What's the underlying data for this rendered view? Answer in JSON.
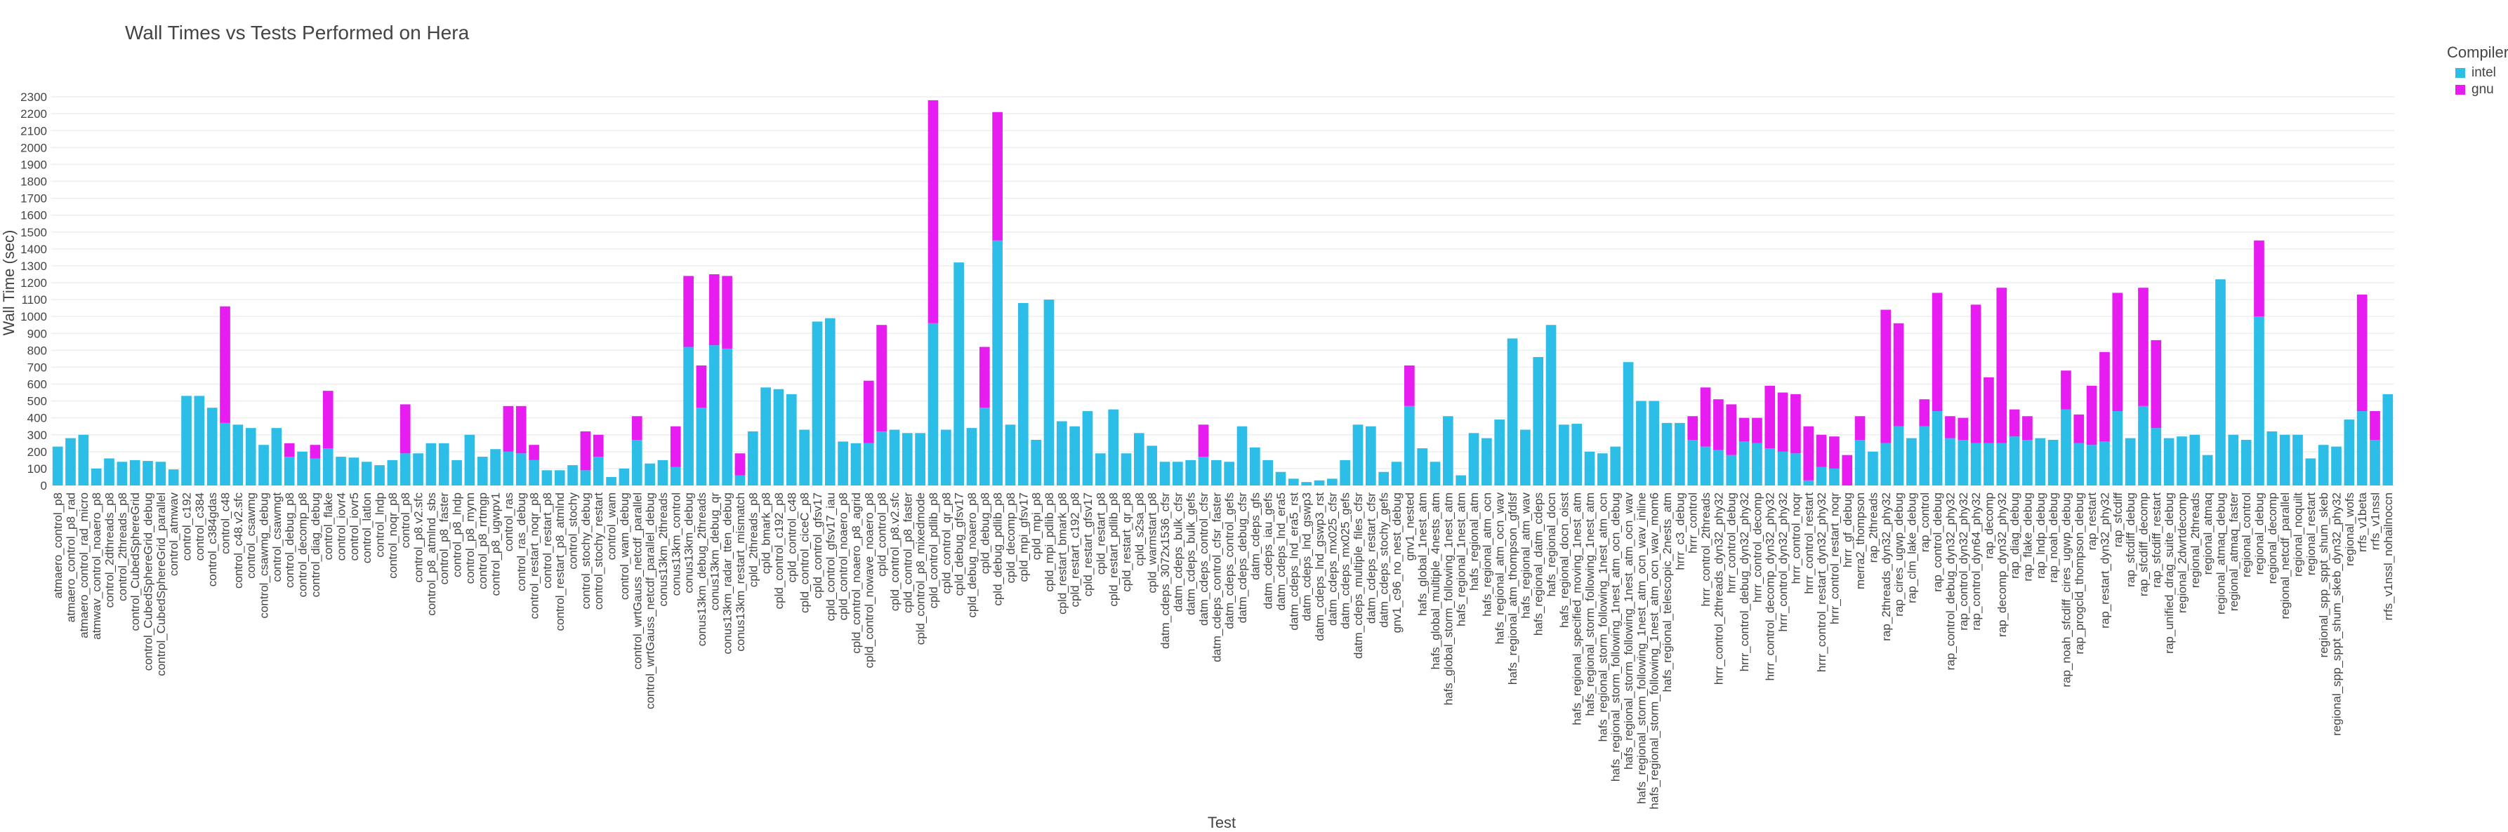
{
  "chart_data": {
    "type": "bar",
    "stacked": true,
    "title": "Wall Times vs Tests Performed on Hera",
    "x_label": "Test",
    "y_label": "Wall Time (sec)",
    "legend_title": "Compiler",
    "legend": "right",
    "grid": true,
    "ylim": [
      0,
      2400
    ],
    "yticks": [
      0,
      100,
      200,
      300,
      400,
      500,
      600,
      700,
      800,
      900,
      1000,
      1100,
      1200,
      1300,
      1400,
      1500,
      1600,
      1700,
      1800,
      1900,
      2000,
      2100,
      2200,
      2300
    ],
    "categories": [
      "atmaero_control_p8",
      "atmaero_control_p8_rad",
      "atmaero_control_rad_micro",
      "atmwav_control_noaero_p8",
      "control_2dthreads_p8",
      "control_2threads_p8",
      "control_CubedSphereGrid",
      "control_CubedSphereGrid_debug",
      "control_CubedSphereGrid_parallel",
      "control_atmwav",
      "control_c192",
      "control_c384",
      "control_c384gdas",
      "control_c48",
      "control_c48.v2.sfc",
      "control_csawmg",
      "control_csawmg_debug",
      "control_csawmgt",
      "control_debug_p8",
      "control_decomp_p8",
      "control_diag_debug",
      "control_flake",
      "control_iovr4",
      "control_iovr5",
      "control_latlon",
      "control_lndp",
      "control_noqr_p8",
      "control_p8",
      "control_p8.v2.sfc",
      "control_p8_atmlnd_sbs",
      "control_p8_faster",
      "control_p8_lndp",
      "control_p8_mynn",
      "control_p8_rrtmgp",
      "control_p8_ugwpv1",
      "control_ras",
      "control_ras_debug",
      "control_restart_noqr_p8",
      "control_restart_p8",
      "control_restart_p8_atmlnd",
      "control_stochy",
      "control_stochy_debug",
      "control_stochy_restart",
      "control_wam",
      "control_wam_debug",
      "control_wrtGauss_netcdf_parallel",
      "control_wrtGauss_netcdf_parallel_debug",
      "conus13km_2threads",
      "conus13km_control",
      "conus13km_debug",
      "conus13km_debug_2threads",
      "conus13km_debug_qr",
      "conus13km_radar_tten_debug",
      "conus13km_restart_mismatch",
      "cpld_2threads_p8",
      "cpld_bmark_p8",
      "cpld_control_c192_p8",
      "cpld_control_c48",
      "cpld_control_ciceC_p8",
      "cpld_control_gfsv17",
      "cpld_control_gfsv17_iau",
      "cpld_control_noaero_p8",
      "cpld_control_noaero_p8_agrid",
      "cpld_control_nowave_noaero_p8",
      "cpld_control_p8",
      "cpld_control_p8.v2.sfc",
      "cpld_control_p8_faster",
      "cpld_control_p8_mixedmode",
      "cpld_control_pdlib_p8",
      "cpld_control_qr_p8",
      "cpld_debug_gfsv17",
      "cpld_debug_noaero_p8",
      "cpld_debug_p8",
      "cpld_debug_pdlib_p8",
      "cpld_decomp_p8",
      "cpld_mpi_gfsv17",
      "cpld_mpi_p8",
      "cpld_mpi_pdlib_p8",
      "cpld_restart_bmark_p8",
      "cpld_restart_c192_p8",
      "cpld_restart_gfsv17",
      "cpld_restart_p8",
      "cpld_restart_pdlib_p8",
      "cpld_restart_qr_p8",
      "cpld_s2sa_p8",
      "cpld_warmstart_p8",
      "datm_cdeps_3072x1536_cfsr",
      "datm_cdeps_bulk_cfsr",
      "datm_cdeps_bulk_gefs",
      "datm_cdeps_control_cfsr",
      "datm_cdeps_control_cfsr_faster",
      "datm_cdeps_control_gefs",
      "datm_cdeps_debug_cfsr",
      "datm_cdeps_gfs",
      "datm_cdeps_iau_gefs",
      "datm_cdeps_lnd_era5",
      "datm_cdeps_lnd_era5_rst",
      "datm_cdeps_lnd_gswp3",
      "datm_cdeps_lnd_gswp3_rst",
      "datm_cdeps_mx025_cfsr",
      "datm_cdeps_mx025_gefs",
      "datm_cdeps_multiple_files_cfsr",
      "datm_cdeps_restart_cfsr",
      "datm_cdeps_stochy_gefs",
      "gnv1_c96_no_nest_debug",
      "gnv1_nested",
      "hafs_global_1nest_atm",
      "hafs_global_multiple_4nests_atm",
      "hafs_global_storm_following_1nest_atm",
      "hafs_regional_1nest_atm",
      "hafs_regional_atm",
      "hafs_regional_atm_ocn",
      "hafs_regional_atm_ocn_wav",
      "hafs_regional_atm_thompson_gfdlsf",
      "hafs_regional_atm_wav",
      "hafs_regional_datm_cdeps",
      "hafs_regional_docn",
      "hafs_regional_docn_oisst",
      "hafs_regional_specified_moving_1nest_atm",
      "hafs_regional_storm_following_1nest_atm",
      "hafs_regional_storm_following_1nest_atm_ocn",
      "hafs_regional_storm_following_1nest_atm_ocn_debug",
      "hafs_regional_storm_following_1nest_atm_ocn_wav",
      "hafs_regional_storm_following_1nest_atm_ocn_wav_inline",
      "hafs_regional_storm_following_1nest_atm_ocn_wav_mom6",
      "hafs_regional_telescopic_2nests_atm",
      "hrrr_c3_debug",
      "hrrr_control",
      "hrrr_control_2threads",
      "hrrr_control_2threads_dyn32_phy32",
      "hrrr_control_debug",
      "hrrr_control_debug_dyn32_phy32",
      "hrrr_control_decomp",
      "hrrr_control_decomp_dyn32_phy32",
      "hrrr_control_dyn32_phy32",
      "hrrr_control_noqr",
      "hrrr_control_restart",
      "hrrr_control_restart_dyn32_phy32",
      "hrrr_control_restart_noqr",
      "hrrr_gf_debug",
      "merra2_thompson",
      "rap_2threads",
      "rap_2threads_dyn32_phy32",
      "rap_cires_ugwp_debug",
      "rap_clm_lake_debug",
      "rap_control",
      "rap_control_debug",
      "rap_control_debug_dyn32_phy32",
      "rap_control_dyn32_phy32",
      "rap_control_dyn64_phy32",
      "rap_decomp",
      "rap_decomp_dyn32_phy32",
      "rap_diag_debug",
      "rap_flake_debug",
      "rap_lndp_debug",
      "rap_noah_debug",
      "rap_noah_sfcdiff_cires_ugwp_debug",
      "rap_progcld_thompson_debug",
      "rap_restart",
      "rap_restart_dyn32_phy32",
      "rap_sfcdiff",
      "rap_sfcdiff_debug",
      "rap_sfcdiff_decomp",
      "rap_sfcdiff_restart",
      "rap_unified_drag_suite_debug",
      "regional_2dwrtdecomp",
      "regional_2threads",
      "regional_atmaq",
      "regional_atmaq_debug",
      "regional_atmaq_faster",
      "regional_control",
      "regional_debug",
      "regional_decomp",
      "regional_netcdf_parallel",
      "regional_noquilt",
      "regional_restart",
      "regional_spp_sppt_shum_skeb",
      "regional_spp_sppt_shum_skeb_dyn32_phy32",
      "regional_wofs",
      "rrfs_v1beta",
      "rrfs_v1nssl",
      "rrfs_v1nssl_nohailnoccn"
    ],
    "series": [
      {
        "name": "intel",
        "color": "#2dbee8",
        "values": [
          230,
          280,
          300,
          100,
          160,
          140,
          150,
          145,
          140,
          95,
          530,
          530,
          460,
          370,
          360,
          340,
          240,
          340,
          170,
          200,
          160,
          220,
          170,
          165,
          140,
          120,
          150,
          190,
          190,
          250,
          250,
          150,
          300,
          170,
          215,
          200,
          190,
          150,
          90,
          90,
          120,
          90,
          170,
          50,
          100,
          270,
          130,
          150,
          110,
          820,
          460,
          830,
          810,
          60,
          320,
          580,
          570,
          540,
          330,
          970,
          990,
          260,
          250,
          250,
          320,
          330,
          310,
          310,
          960,
          330,
          1320,
          340,
          460,
          1450,
          360,
          1080,
          270,
          1100,
          380,
          350,
          440,
          190,
          450,
          190,
          310,
          235,
          140,
          140,
          150,
          170,
          150,
          140,
          350,
          225,
          150,
          80,
          40,
          20,
          30,
          40,
          150,
          360,
          350,
          80,
          140,
          470,
          220,
          140,
          410,
          60,
          310,
          280,
          390,
          870,
          330,
          760,
          950,
          360,
          365,
          200,
          190,
          230,
          730,
          500,
          500,
          370,
          370,
          270,
          230,
          210,
          180,
          260,
          250,
          220,
          200,
          190,
          30,
          110,
          100,
          null,
          270,
          200,
          250,
          350,
          280,
          350,
          440,
          280,
          270,
          250,
          250,
          250,
          290,
          270,
          280,
          270,
          450,
          250,
          240,
          260,
          440,
          280,
          470,
          340,
          280,
          290,
          300,
          180,
          1220,
          300,
          270,
          1000,
          320,
          300,
          300,
          160,
          240,
          230,
          390,
          440,
          270,
          540
        ]
      },
      {
        "name": "gnu",
        "color": "#e61cf0",
        "values": [
          null,
          null,
          null,
          null,
          null,
          null,
          null,
          null,
          null,
          null,
          null,
          null,
          null,
          690,
          null,
          null,
          null,
          null,
          80,
          null,
          80,
          340,
          null,
          null,
          null,
          null,
          null,
          290,
          null,
          null,
          null,
          null,
          null,
          null,
          null,
          270,
          280,
          90,
          null,
          null,
          null,
          230,
          130,
          null,
          null,
          140,
          null,
          null,
          240,
          420,
          250,
          420,
          430,
          130,
          null,
          null,
          null,
          null,
          null,
          null,
          null,
          null,
          null,
          370,
          630,
          null,
          null,
          null,
          1320,
          null,
          null,
          null,
          360,
          760,
          null,
          null,
          null,
          null,
          null,
          null,
          null,
          null,
          null,
          null,
          null,
          null,
          null,
          null,
          null,
          190,
          null,
          null,
          null,
          null,
          null,
          null,
          null,
          null,
          null,
          null,
          null,
          null,
          null,
          null,
          null,
          240,
          null,
          null,
          null,
          null,
          null,
          null,
          null,
          null,
          null,
          null,
          null,
          null,
          null,
          null,
          null,
          null,
          null,
          null,
          null,
          null,
          null,
          140,
          350,
          300,
          300,
          140,
          150,
          370,
          350,
          350,
          320,
          190,
          190,
          180,
          140,
          null,
          790,
          610,
          null,
          160,
          700,
          130,
          130,
          820,
          390,
          920,
          160,
          140,
          null,
          null,
          230,
          170,
          350,
          530,
          700,
          null,
          700,
          520,
          null,
          null,
          null,
          null,
          null,
          null,
          null,
          450,
          null,
          null,
          null,
          null,
          null,
          null,
          null,
          690,
          170,
          null
        ]
      }
    ]
  }
}
